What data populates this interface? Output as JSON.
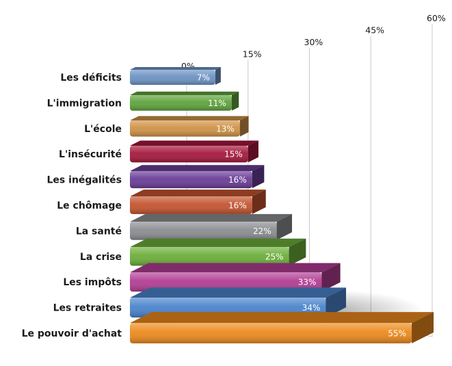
{
  "chart_data": {
    "type": "bar",
    "orientation": "horizontal",
    "style": "3d-perspective",
    "categories": [
      "Les déficits",
      "L'immigration",
      "L'école",
      "L'insécurité",
      "Les inégalités",
      "Le chômage",
      "La santé",
      "La crise",
      "Les impôts",
      "Les retraites",
      "Le pouvoir d'achat"
    ],
    "values": [
      7,
      11,
      13,
      15,
      16,
      16,
      22,
      25,
      33,
      34,
      55
    ],
    "value_labels": [
      "7%",
      "11%",
      "13%",
      "15%",
      "16%",
      "16%",
      "22%",
      "25%",
      "33%",
      "34%",
      "55%"
    ],
    "colors": [
      "#6d93c4",
      "#5fa33c",
      "#cf9246",
      "#a5183c",
      "#6a3d97",
      "#c4542f",
      "#8b8d91",
      "#6cae3a",
      "#b23d94",
      "#4a84cc",
      "#ec8a1d"
    ],
    "ticks": [
      0,
      15,
      30,
      45,
      60
    ],
    "tick_labels": [
      "0%",
      "15%",
      "30%",
      "45%",
      "60%"
    ],
    "xlim": [
      0,
      60
    ],
    "grid": true
  }
}
